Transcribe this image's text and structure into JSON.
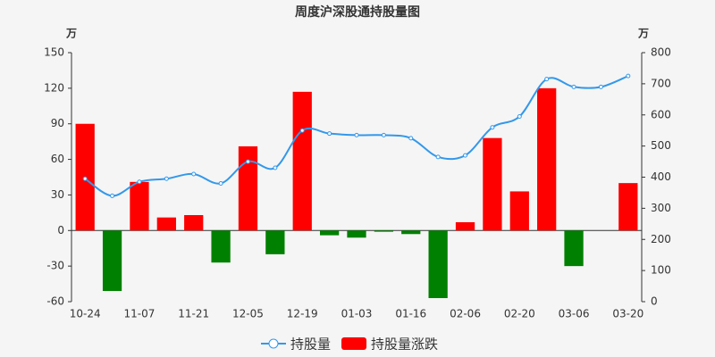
{
  "chart_data": {
    "type": "bar-line",
    "title": "周度沪深股通持股量图",
    "y_unit": "万",
    "y2_unit": "万",
    "categories": [
      "10-24",
      null,
      "11-07",
      null,
      "11-21",
      null,
      "12-05",
      null,
      "12-19",
      null,
      "01-03",
      null,
      "01-16",
      null,
      "02-06",
      null,
      "02-20",
      null,
      "03-06",
      null,
      "03-20"
    ],
    "series": [
      {
        "name": "持股量",
        "type": "line",
        "axis": "y2",
        "color": "#3398ea",
        "values": [
          395,
          340,
          385,
          395,
          410,
          380,
          450,
          430,
          550,
          540,
          535,
          535,
          525,
          465,
          470,
          560,
          595,
          715,
          690,
          690,
          725
        ]
      },
      {
        "name": "持股量涨跌",
        "type": "bar",
        "color": "#ff0000",
        "negative_color": "#008000",
        "values": [
          90,
          -51,
          41,
          11,
          13,
          -27,
          71,
          -20,
          117,
          -4,
          -6,
          -1,
          -3,
          -57,
          7,
          78,
          33,
          120,
          -30,
          0,
          40
        ]
      }
    ],
    "ylim": [
      -60,
      150
    ],
    "yticks": [
      -60,
      -30,
      0,
      30,
      60,
      90,
      120,
      150
    ],
    "y2lim": [
      0,
      800
    ],
    "y2ticks": [
      0,
      100,
      200,
      300,
      400,
      500,
      600,
      700,
      800
    ]
  }
}
